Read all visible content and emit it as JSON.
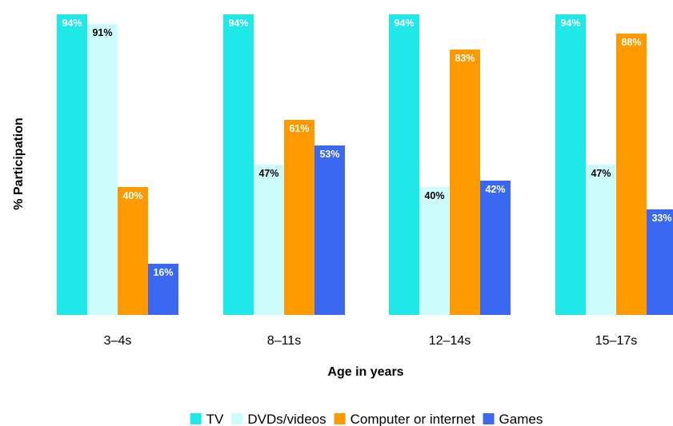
{
  "chart_data": {
    "type": "bar",
    "title": "",
    "xlabel": "Age in years",
    "ylabel": "% Participation",
    "ylim": [
      0,
      100
    ],
    "grid": false,
    "legend_position": "bottom",
    "categories": [
      "3–4s",
      "8–11s",
      "12–14s",
      "15–17s"
    ],
    "series": [
      {
        "name": "TV",
        "color": "#1ee8e8",
        "label_color": "#ffffff",
        "values": [
          94,
          94,
          94,
          94
        ],
        "labels": [
          "94%",
          "94%",
          "94%",
          "94%"
        ]
      },
      {
        "name": "DVDs/videos",
        "color": "#ccfcfc",
        "label_color": "#000000",
        "values": [
          91,
          47,
          40,
          47
        ],
        "labels": [
          "91%",
          "47%",
          "40%",
          "47%"
        ]
      },
      {
        "name": "Computer or internet",
        "color": "#ff9900",
        "label_color": "#ffffff",
        "values": [
          40,
          61,
          83,
          88
        ],
        "labels": [
          "40%",
          "61%",
          "83%",
          "88%"
        ]
      },
      {
        "name": "Games",
        "color": "#3b68f0",
        "label_color": "#ffffff",
        "values": [
          16,
          53,
          42,
          33
        ],
        "labels": [
          "16%",
          "53%",
          "42%",
          "33%"
        ]
      }
    ]
  }
}
